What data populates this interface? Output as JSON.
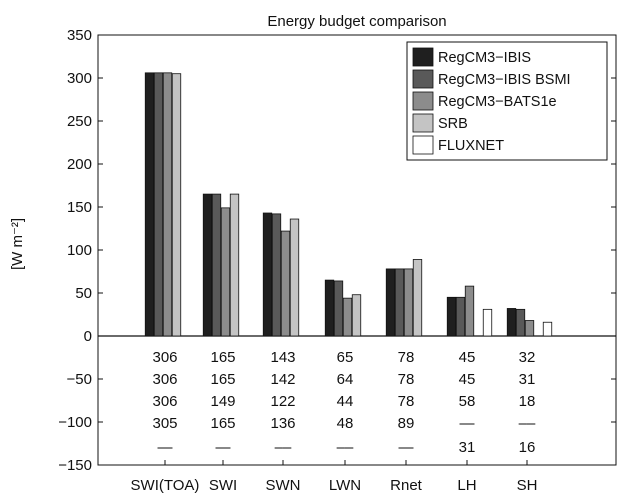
{
  "chart_data": {
    "type": "bar",
    "title": "Energy budget comparison",
    "ylabel": "[W m⁻²]",
    "ylim": [
      -150,
      350
    ],
    "yticks": [
      -150,
      -100,
      -50,
      0,
      50,
      100,
      150,
      200,
      250,
      300,
      350
    ],
    "ytick_labels": [
      "−150",
      "−100",
      "−50",
      "0",
      "50",
      "100",
      "150",
      "200",
      "250",
      "300",
      "350"
    ],
    "categories": [
      "SWI(TOA)",
      "SWI",
      "SWN",
      "LWN",
      "Rnet",
      "LH",
      "SH"
    ],
    "series": [
      {
        "name": "RegCM3−IBIS",
        "color": "#1f1f1f",
        "values": [
          306,
          165,
          143,
          65,
          78,
          45,
          32
        ]
      },
      {
        "name": "RegCM3−IBIS BSMI",
        "color": "#595959",
        "values": [
          306,
          165,
          142,
          64,
          78,
          45,
          31
        ]
      },
      {
        "name": "RegCM3−BATS1e",
        "color": "#8c8c8c",
        "values": [
          306,
          149,
          122,
          44,
          78,
          58,
          18
        ]
      },
      {
        "name": "SRB",
        "color": "#c4c4c4",
        "values": [
          305,
          165,
          136,
          48,
          89,
          null,
          null
        ]
      },
      {
        "name": "FLUXNET",
        "color": "#ffffff",
        "values": [
          null,
          null,
          null,
          null,
          null,
          31,
          16
        ]
      }
    ],
    "table_rows": [
      [
        "306",
        "165",
        "143",
        "65",
        "78",
        "45",
        "32"
      ],
      [
        "306",
        "165",
        "142",
        "64",
        "78",
        "45",
        "31"
      ],
      [
        "306",
        "149",
        "122",
        "44",
        "78",
        "58",
        "18"
      ],
      [
        "305",
        "165",
        "136",
        "48",
        "89",
        "—",
        "––"
      ],
      [
        "—",
        "—",
        "––",
        "––",
        "—",
        "31",
        "16"
      ]
    ],
    "legend_position": "top-right",
    "grid": false
  }
}
